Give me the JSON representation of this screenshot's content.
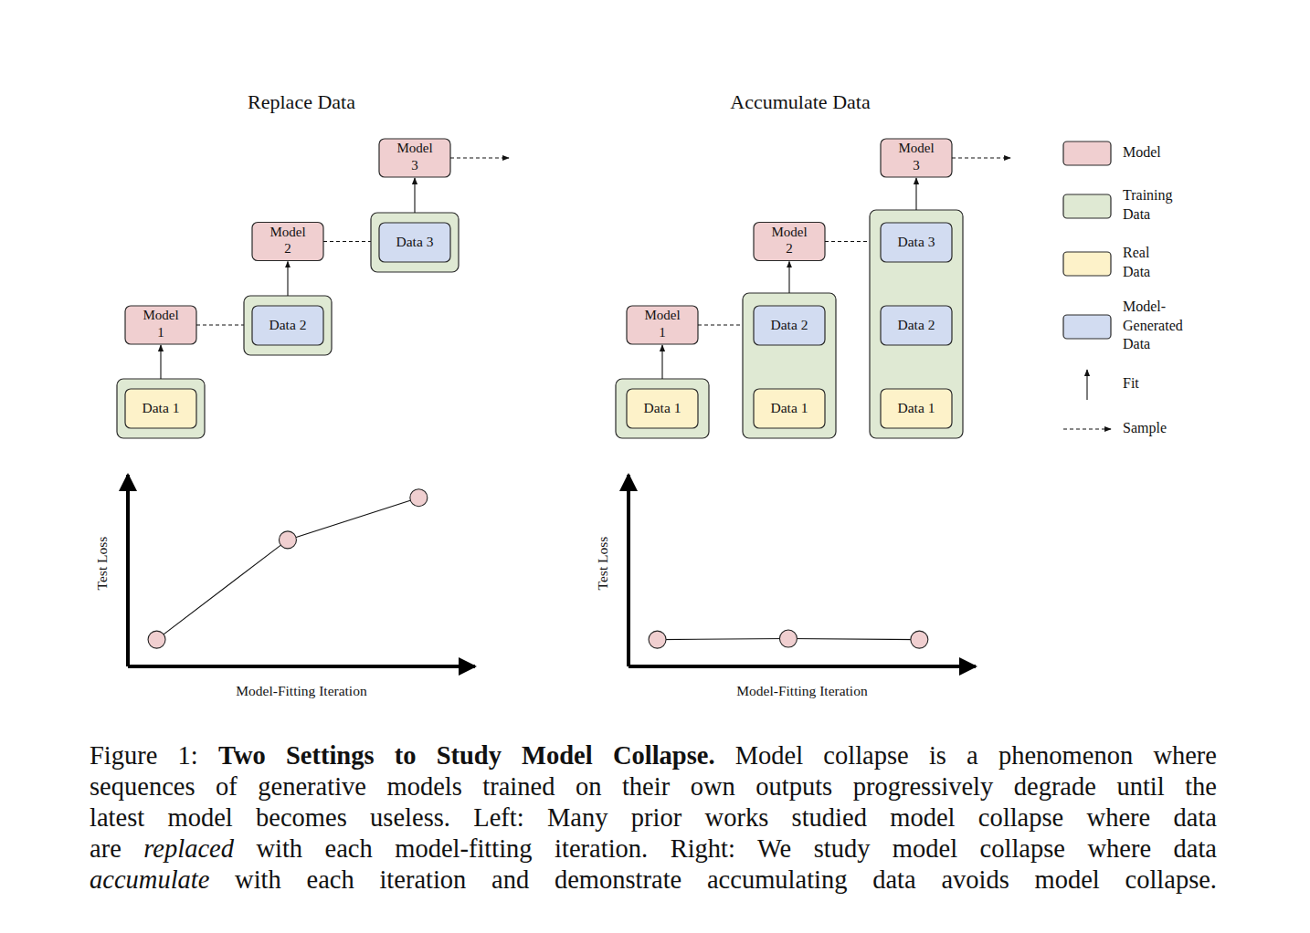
{
  "diagrams": [
    {
      "title": "Replace Data",
      "mode": "replace",
      "steps": [
        {
          "model": [
            "Model",
            "1"
          ],
          "training_data": [
            {
              "label": "Data 1",
              "kind": "real"
            }
          ]
        },
        {
          "model": [
            "Model",
            "2"
          ],
          "training_data": [
            {
              "label": "Data 2",
              "kind": "generated"
            }
          ]
        },
        {
          "model": [
            "Model",
            "3"
          ],
          "training_data": [
            {
              "label": "Data 3",
              "kind": "generated"
            }
          ]
        }
      ]
    },
    {
      "title": "Accumulate Data",
      "mode": "accumulate",
      "steps": [
        {
          "model": [
            "Model",
            "1"
          ],
          "training_data": [
            {
              "label": "Data 1",
              "kind": "real"
            }
          ]
        },
        {
          "model": [
            "Model",
            "2"
          ],
          "training_data": [
            {
              "label": "Data 1",
              "kind": "real"
            },
            {
              "label": "Data 2",
              "kind": "generated"
            }
          ]
        },
        {
          "model": [
            "Model",
            "3"
          ],
          "training_data": [
            {
              "label": "Data 1",
              "kind": "real"
            },
            {
              "label": "Data 2",
              "kind": "generated"
            },
            {
              "label": "Data 3",
              "kind": "generated"
            }
          ]
        }
      ]
    }
  ],
  "legend": [
    {
      "label": [
        "Model"
      ],
      "kind": "model"
    },
    {
      "label": [
        "Training",
        "Data"
      ],
      "kind": "training"
    },
    {
      "label": [
        "Real",
        "Data"
      ],
      "kind": "real"
    },
    {
      "label": [
        "Model-",
        "Generated",
        "Data"
      ],
      "kind": "generated"
    },
    {
      "label": [
        "Fit"
      ],
      "kind": "fit"
    },
    {
      "label": [
        "Sample"
      ],
      "kind": "sample"
    }
  ],
  "chart_data": [
    {
      "type": "line",
      "x_label": "Model-Fitting Iteration",
      "y_label": "Test Loss",
      "x": [
        1,
        2,
        3
      ],
      "series": [
        {
          "color": "#f0cfd0",
          "marker": "circle",
          "values": [
            0.14,
            0.66,
            0.88
          ]
        }
      ],
      "xlim": [
        0.78,
        3.43
      ],
      "ylim": [
        0,
        1
      ],
      "tick_labels": false
    },
    {
      "type": "line",
      "x_label": "Model-Fitting Iteration",
      "y_label": "Test Loss",
      "x": [
        1,
        2,
        3
      ],
      "series": [
        {
          "color": "#f0cfd0",
          "marker": "circle",
          "values": [
            0.14,
            0.145,
            0.14
          ]
        }
      ],
      "xlim": [
        0.78,
        3.43
      ],
      "ylim": [
        0,
        1
      ],
      "tick_labels": false
    }
  ],
  "caption": {
    "lines": [
      [
        {
          "text": "Figure 1: ",
          "style": "normal"
        },
        {
          "text": "Two Settings to Study Model Collapse.",
          "style": "bold"
        },
        {
          "text": " Model collapse is a phenomenon where",
          "style": "normal"
        }
      ],
      [
        {
          "text": "sequences of generative models trained on their own outputs progressively degrade until the",
          "style": "normal"
        }
      ],
      [
        {
          "text": "latest model becomes useless. Left: Many prior works studied model collapse where data",
          "style": "normal"
        }
      ],
      [
        {
          "text": "are ",
          "style": "normal"
        },
        {
          "text": "replaced",
          "style": "italic"
        },
        {
          "text": " with each model-fitting iteration. Right: We study model collapse where data",
          "style": "normal"
        }
      ],
      [
        {
          "text": "accumulate",
          "style": "italic"
        },
        {
          "text": " with each iteration and demonstrate accumulating data avoids model collapse.",
          "style": "normal"
        }
      ]
    ]
  }
}
